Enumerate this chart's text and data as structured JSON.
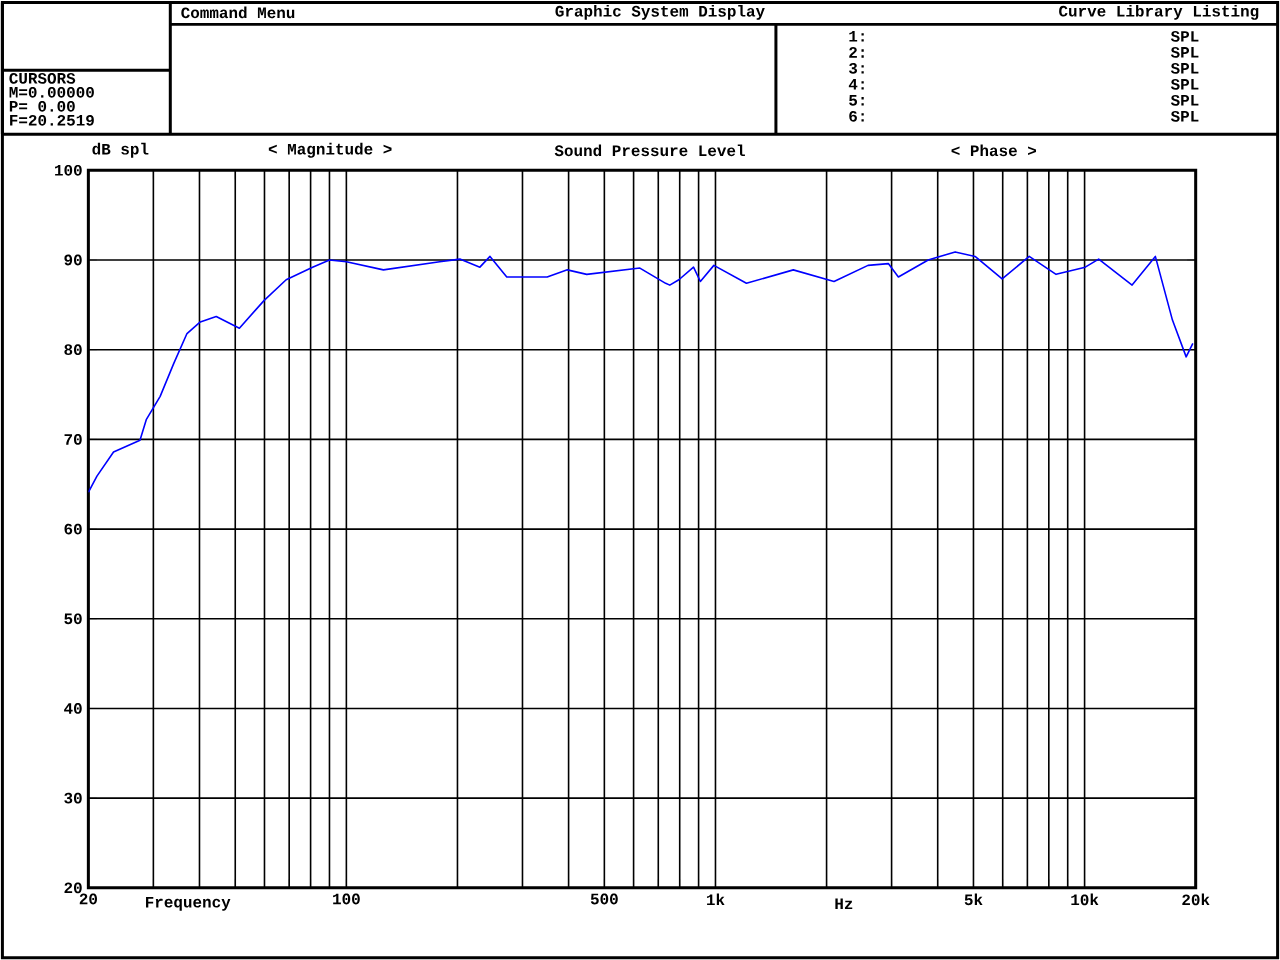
{
  "chart_data": {
    "type": "line",
    "title": "Sound Pressure Level",
    "xlabel": "Frequency",
    "ylabel": "dB spl",
    "log": "x",
    "grid": true,
    "marker": "none",
    "line_style": "solid",
    "xlim": [
      20,
      20000
    ],
    "ylim": [
      20,
      100
    ],
    "xticks": [
      20,
      {
        "value": 30,
        "label": null
      },
      {
        "value": 40,
        "label": null
      },
      {
        "value": 50,
        "label": null
      },
      {
        "value": 60,
        "label": null
      },
      {
        "value": 70,
        "label": null
      },
      {
        "value": 80,
        "label": null
      },
      {
        "value": 90,
        "label": null
      },
      100,
      {
        "value": 200,
        "label": null
      },
      {
        "value": 300,
        "label": null
      },
      {
        "value": 400,
        "label": null
      },
      500,
      {
        "value": 600,
        "label": null
      },
      {
        "value": 700,
        "label": null
      },
      {
        "value": 800,
        "label": null
      },
      {
        "value": 900,
        "label": null
      },
      {
        "value": 1000,
        "label": "1k"
      },
      {
        "value": 2000,
        "label": null
      },
      {
        "value": 3000,
        "label": null
      },
      {
        "value": 4000,
        "label": null
      },
      {
        "value": 5000,
        "label": "5k"
      },
      {
        "value": 6000,
        "label": null
      },
      {
        "value": 7000,
        "label": null
      },
      {
        "value": 8000,
        "label": null
      },
      {
        "value": 9000,
        "label": null
      },
      {
        "value": 10000,
        "label": "10k"
      },
      {
        "value": 20000,
        "label": "20k"
      }
    ],
    "yticks": [
      20,
      30,
      40,
      50,
      60,
      70,
      80,
      90,
      100
    ],
    "annotations": [
      "Command Menu",
      "Graphic System Display",
      "Curve Library Listing",
      "CURSORS",
      "M=0.00000",
      "P=     0.00",
      "F=20.2519",
      "< Magnitude >",
      "< Phase >",
      "Hz",
      "1:",
      "2:",
      "3:",
      "4:",
      "5:",
      "6:",
      "SPL",
      "SPL",
      "SPL",
      "SPL",
      "SPL",
      "SPL"
    ],
    "series": [
      {
        "color": "#0000ff",
        "x": [
          20,
          21.1,
          23.4,
          27.6,
          28.7,
          31.3,
          34.1,
          37.0,
          40.2,
          44.4,
          51.3,
          59.9,
          68.7,
          81,
          90,
          100,
          126,
          179,
          203,
          230,
          245,
          272,
          350,
          397,
          448,
          624,
          733,
          752,
          796,
          872,
          910,
          990,
          1213,
          1625,
          2095,
          2590,
          2940,
          3130,
          3770,
          4460,
          5050,
          5980,
          7080,
          8370,
          10040,
          10920,
          13450,
          15550,
          17300,
          18850,
          19650
        ],
        "values": [
          64.1,
          65.9,
          68.6,
          69.9,
          72.2,
          74.8,
          78.5,
          81.8,
          83.1,
          83.7,
          82.4,
          85.5,
          87.8,
          89.2,
          90.0,
          89.8,
          88.9,
          89.8,
          90.1,
          89.2,
          90.4,
          88.1,
          88.1,
          88.9,
          88.4,
          89.1,
          87.4,
          87.2,
          87.8,
          89.2,
          87.6,
          89.4,
          87.4,
          88.9,
          87.6,
          89.4,
          89.6,
          88.1,
          90.0,
          90.9,
          90.4,
          87.9,
          90.4,
          88.4,
          89.2,
          90.1,
          87.2,
          90.4,
          83.3,
          79.2,
          80.7
        ]
      }
    ]
  }
}
